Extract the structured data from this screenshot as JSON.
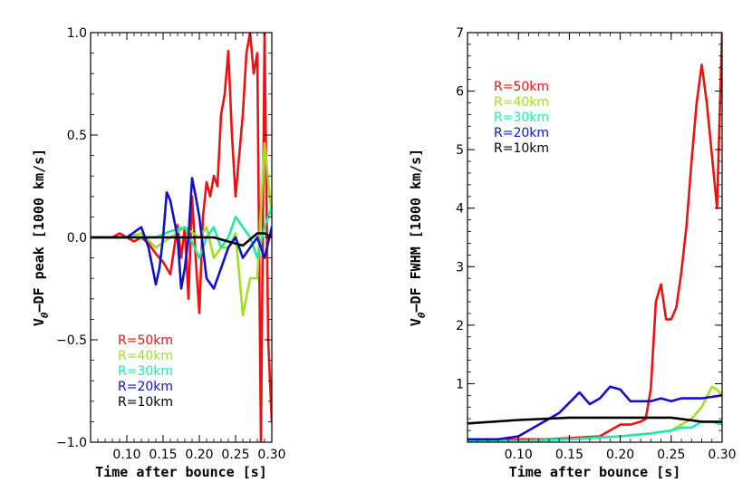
{
  "chart_data": [
    {
      "type": "line",
      "xlabel": "Time after bounce [s]",
      "ylabel_main": "V",
      "ylabel_sub": "θ",
      "ylabel_rest": "–DF peak [1000 km/s]",
      "xlim": [
        0.05,
        0.3
      ],
      "ylim": [
        -1.0,
        1.0
      ],
      "xticks": [
        0.1,
        0.15,
        0.2,
        0.25,
        0.3
      ],
      "xtick_labels": [
        "0.10",
        "0.15",
        "0.20",
        "0.25",
        "0.30"
      ],
      "yticks": [
        -1.0,
        -0.5,
        0.0,
        0.5,
        1.0
      ],
      "ytick_labels": [
        "−1.0",
        "−0.5",
        "0.0",
        "0.5",
        "1.0"
      ],
      "legend_position": "bottom-left",
      "series": [
        {
          "name": "R=50km",
          "color": "#ee1111",
          "x": [
            0.05,
            0.06,
            0.07,
            0.08,
            0.09,
            0.1,
            0.11,
            0.12,
            0.13,
            0.14,
            0.15,
            0.16,
            0.17,
            0.175,
            0.18,
            0.185,
            0.19,
            0.195,
            0.2,
            0.205,
            0.21,
            0.215,
            0.22,
            0.225,
            0.23,
            0.235,
            0.24,
            0.245,
            0.25,
            0.255,
            0.26,
            0.265,
            0.27,
            0.275,
            0.28,
            0.285,
            0.29,
            0.295,
            0.3
          ],
          "y": [
            0.0,
            0.0,
            0.0,
            0.0,
            0.02,
            0.0,
            -0.02,
            0.0,
            -0.03,
            -0.08,
            -0.12,
            -0.18,
            0.06,
            -0.1,
            0.05,
            -0.3,
            0.2,
            -0.1,
            -0.37,
            0.1,
            0.27,
            0.2,
            0.3,
            0.25,
            0.6,
            0.7,
            0.91,
            0.5,
            0.2,
            0.4,
            0.6,
            0.9,
            1.0,
            0.8,
            0.9,
            -1.0,
            1.0,
            -0.5,
            -0.9
          ]
        },
        {
          "name": "R=40km",
          "color": "#a0e020",
          "x": [
            0.05,
            0.08,
            0.1,
            0.12,
            0.14,
            0.16,
            0.18,
            0.2,
            0.21,
            0.22,
            0.23,
            0.24,
            0.25,
            0.26,
            0.27,
            0.28,
            0.29,
            0.3
          ],
          "y": [
            0.0,
            0.0,
            0.0,
            0.02,
            -0.05,
            0.0,
            0.05,
            0.0,
            0.05,
            -0.1,
            -0.05,
            -0.05,
            0.02,
            -0.38,
            -0.2,
            -0.2,
            0.46,
            0.1
          ]
        },
        {
          "name": "R=30km",
          "color": "#22e8b0",
          "x": [
            0.05,
            0.1,
            0.14,
            0.16,
            0.18,
            0.2,
            0.21,
            0.22,
            0.23,
            0.24,
            0.25,
            0.26,
            0.27,
            0.28,
            0.29,
            0.3
          ],
          "y": [
            0.0,
            0.0,
            0.0,
            0.03,
            0.05,
            -0.1,
            0.0,
            0.05,
            -0.05,
            0.0,
            0.1,
            0.05,
            0.0,
            -0.1,
            0.05,
            0.15
          ]
        },
        {
          "name": "R=20km",
          "color": "#1010cc",
          "x": [
            0.05,
            0.1,
            0.12,
            0.13,
            0.14,
            0.145,
            0.15,
            0.155,
            0.16,
            0.17,
            0.175,
            0.18,
            0.185,
            0.19,
            0.195,
            0.2,
            0.21,
            0.22,
            0.23,
            0.24,
            0.25,
            0.26,
            0.27,
            0.28,
            0.29,
            0.3
          ],
          "y": [
            0.0,
            0.0,
            0.05,
            -0.05,
            -0.23,
            -0.15,
            0.0,
            0.22,
            0.18,
            0.0,
            -0.25,
            -0.15,
            0.0,
            0.29,
            0.2,
            0.1,
            -0.2,
            -0.25,
            -0.15,
            -0.05,
            0.0,
            -0.1,
            -0.05,
            0.0,
            -0.1,
            0.05
          ]
        },
        {
          "name": "R=10km",
          "color": "#000000",
          "x": [
            0.05,
            0.1,
            0.15,
            0.2,
            0.22,
            0.24,
            0.26,
            0.28,
            0.29,
            0.3
          ],
          "y": [
            0.0,
            0.0,
            0.0,
            0.0,
            0.0,
            -0.02,
            -0.04,
            0.02,
            0.02,
            0.0
          ]
        }
      ]
    },
    {
      "type": "line",
      "xlabel": "Time after bounce [s]",
      "ylabel_main": "V",
      "ylabel_sub": "θ",
      "ylabel_rest": "–DF FWHM [1000 km/s]",
      "xlim": [
        0.05,
        0.3
      ],
      "ylim": [
        0.0,
        7.0
      ],
      "xticks": [
        0.1,
        0.15,
        0.2,
        0.25,
        0.3
      ],
      "xtick_labels": [
        "0.10",
        "0.15",
        "0.20",
        "0.25",
        "0.30"
      ],
      "yticks": [
        1,
        2,
        3,
        4,
        5,
        6,
        7
      ],
      "ytick_labels": [
        "1",
        "2",
        "3",
        "4",
        "5",
        "6",
        "7"
      ],
      "legend_position": "top-left",
      "series": [
        {
          "name": "R=50km",
          "color": "#ee1111",
          "x": [
            0.05,
            0.08,
            0.1,
            0.13,
            0.16,
            0.18,
            0.2,
            0.21,
            0.22,
            0.225,
            0.23,
            0.235,
            0.24,
            0.245,
            0.25,
            0.255,
            0.26,
            0.265,
            0.27,
            0.275,
            0.28,
            0.285,
            0.29,
            0.295,
            0.3
          ],
          "y": [
            0.05,
            0.03,
            0.05,
            0.05,
            0.08,
            0.1,
            0.3,
            0.3,
            0.35,
            0.4,
            0.9,
            2.4,
            2.7,
            2.1,
            2.1,
            2.3,
            2.9,
            3.7,
            4.8,
            5.8,
            6.45,
            5.8,
            4.9,
            4.0,
            7.0
          ]
        },
        {
          "name": "R=40km",
          "color": "#a0e020",
          "x": [
            0.05,
            0.1,
            0.15,
            0.2,
            0.23,
            0.25,
            0.26,
            0.27,
            0.28,
            0.29,
            0.295,
            0.3
          ],
          "y": [
            0.02,
            0.02,
            0.05,
            0.1,
            0.15,
            0.2,
            0.3,
            0.4,
            0.6,
            0.95,
            0.9,
            0.8
          ]
        },
        {
          "name": "R=30km",
          "color": "#22e8b0",
          "x": [
            0.05,
            0.1,
            0.15,
            0.2,
            0.23,
            0.25,
            0.26,
            0.27,
            0.28,
            0.29,
            0.3
          ],
          "y": [
            0.02,
            0.02,
            0.05,
            0.1,
            0.15,
            0.2,
            0.25,
            0.25,
            0.35,
            0.35,
            0.3
          ]
        },
        {
          "name": "R=20km",
          "color": "#1010cc",
          "x": [
            0.05,
            0.08,
            0.1,
            0.12,
            0.14,
            0.16,
            0.17,
            0.18,
            0.19,
            0.2,
            0.21,
            0.22,
            0.23,
            0.24,
            0.25,
            0.26,
            0.28,
            0.3
          ],
          "y": [
            0.05,
            0.05,
            0.1,
            0.3,
            0.5,
            0.85,
            0.65,
            0.75,
            0.95,
            0.9,
            0.7,
            0.7,
            0.7,
            0.75,
            0.7,
            0.75,
            0.75,
            0.8
          ]
        },
        {
          "name": "R=10km",
          "color": "#000000",
          "x": [
            0.05,
            0.1,
            0.15,
            0.2,
            0.25,
            0.28,
            0.3
          ],
          "y": [
            0.32,
            0.38,
            0.42,
            0.42,
            0.42,
            0.35,
            0.35
          ]
        }
      ]
    }
  ]
}
